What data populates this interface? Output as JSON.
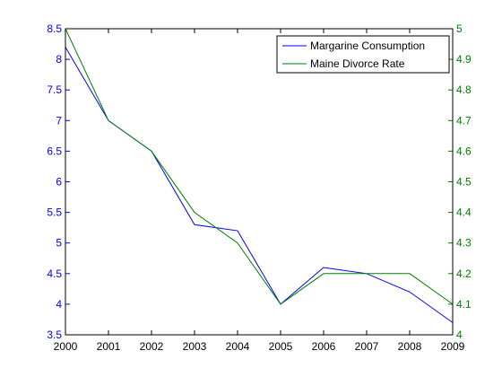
{
  "chart_data": {
    "type": "line",
    "title": "",
    "xlabel": "",
    "ylabel": "",
    "y2label": "",
    "grid": false,
    "legend_position": "top-right",
    "x": [
      2000,
      2001,
      2002,
      2003,
      2004,
      2005,
      2006,
      2007,
      2008,
      2009
    ],
    "xlim": [
      2000,
      2009
    ],
    "x_ticks": [
      "2000",
      "2001",
      "2002",
      "2003",
      "2004",
      "2005",
      "2006",
      "2007",
      "2008",
      "2009"
    ],
    "left_axis": {
      "ylim": [
        3.5,
        8.5
      ],
      "ticks": [
        "3.5",
        "4",
        "4.5",
        "5",
        "5.5",
        "6",
        "6.5",
        "7",
        "7.5",
        "8",
        "8.5"
      ],
      "tick_values": [
        3.5,
        4,
        4.5,
        5,
        5.5,
        6,
        6.5,
        7,
        7.5,
        8,
        8.5
      ],
      "color": "#0000ff"
    },
    "right_axis": {
      "ylim": [
        4,
        5
      ],
      "ticks": [
        "4",
        "4.1",
        "4.2",
        "4.3",
        "4.4",
        "4.5",
        "4.6",
        "4.7",
        "4.8",
        "4.9",
        "5"
      ],
      "tick_values": [
        4,
        4.1,
        4.2,
        4.3,
        4.4,
        4.5,
        4.6,
        4.7,
        4.8,
        4.9,
        5
      ],
      "color": "#008000"
    },
    "series": [
      {
        "name": "Margarine Consumption",
        "axis": "left",
        "color": "#0000ff",
        "values": [
          8.2,
          7.0,
          6.5,
          5.3,
          5.2,
          4.0,
          4.6,
          4.5,
          4.2,
          3.7
        ]
      },
      {
        "name": "Maine Divorce Rate",
        "axis": "right",
        "color": "#008000",
        "values": [
          5.0,
          4.7,
          4.6,
          4.4,
          4.3,
          4.1,
          4.2,
          4.2,
          4.2,
          4.1
        ]
      }
    ]
  }
}
